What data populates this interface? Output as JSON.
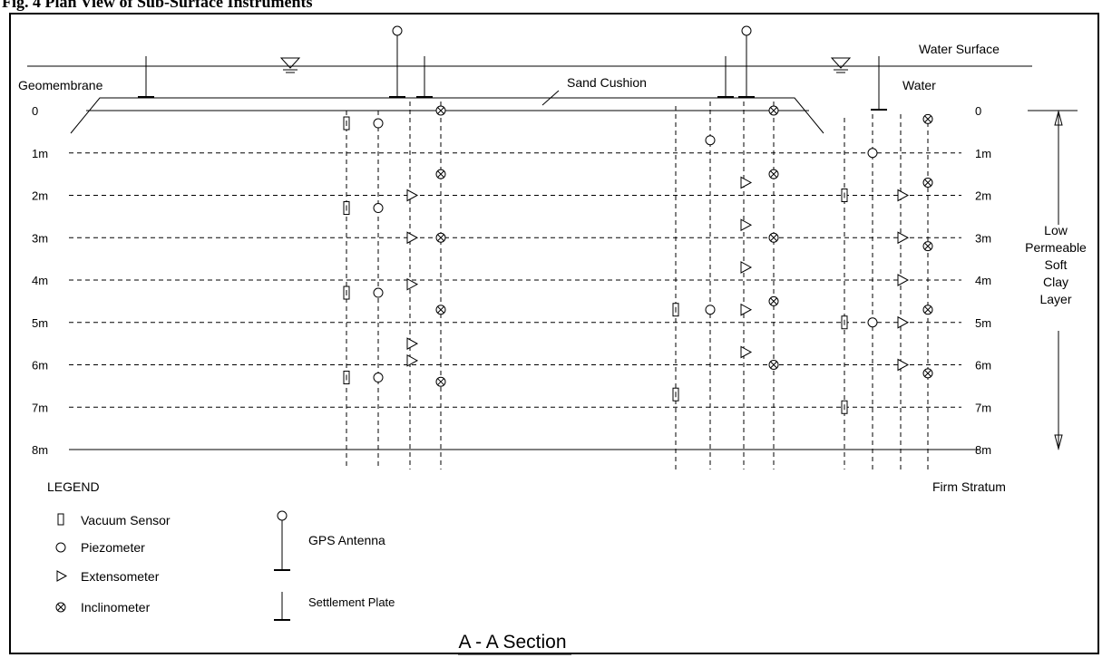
{
  "figure_title": "Fig. 4 Plan View of Sub-Surface Instruments",
  "labels": {
    "water_surface": "Water Surface",
    "water": "Water",
    "geomembrane": "Geomembrane",
    "sand_cushion": "Sand Cushion",
    "firm_stratum": "Firm Stratum",
    "layer_name": [
      "Low",
      "Permeable",
      "Soft",
      "Clay",
      "Layer"
    ],
    "section_title": "A - A  Section"
  },
  "depth_labels": [
    "0",
    "1m",
    "2m",
    "3m",
    "4m",
    "5m",
    "6m",
    "7m",
    "8m"
  ],
  "legend": {
    "title": "LEGEND",
    "items": [
      {
        "symbol": "vacuum-sensor",
        "label": "Vacuum Sensor"
      },
      {
        "symbol": "piezometer",
        "label": "Piezometer"
      },
      {
        "symbol": "extensometer",
        "label": "Extensometer"
      },
      {
        "symbol": "inclinometer",
        "label": "Inclinometer"
      },
      {
        "symbol": "gps-antenna",
        "label": "GPS Antenna"
      },
      {
        "symbol": "settlement-plate",
        "label": "Settlement Plate"
      }
    ]
  },
  "instrument_groups": [
    {
      "group": "left",
      "vacuum_sensor_depths_m": [
        0.3,
        2.3,
        4.3,
        6.3
      ],
      "piezometer_depths_m": [
        0.3,
        2.3,
        4.3,
        6.3
      ],
      "extensometer_depths_m": [
        2.0,
        3.0,
        4.1,
        5.5,
        5.9
      ],
      "inclinometer_depths_m": [
        0.0,
        1.5,
        3.0,
        4.7,
        6.4
      ]
    },
    {
      "group": "middle",
      "vacuum_sensor_depths_m": [
        4.7,
        6.7
      ],
      "piezometer_depths_m": [
        0.7,
        4.7
      ],
      "extensometer_depths_m": [
        1.7,
        2.7,
        3.7,
        4.7,
        5.7
      ],
      "inclinometer_depths_m": [
        0.0,
        1.5,
        3.0,
        4.5,
        6.0
      ]
    },
    {
      "group": "right",
      "vacuum_sensor_depths_m": [
        2.0,
        5.0,
        7.0
      ],
      "piezometer_depths_m": [
        1.0,
        5.0
      ],
      "extensometer_depths_m": [
        2.0,
        3.0,
        4.0,
        5.0,
        6.0
      ],
      "inclinometer_depths_m": [
        0.2,
        1.7,
        3.2,
        4.7,
        6.2
      ]
    }
  ]
}
